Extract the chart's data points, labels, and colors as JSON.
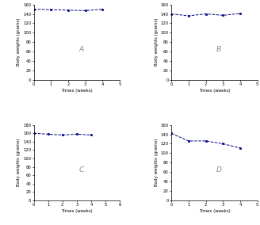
{
  "subplots": [
    {
      "label": "A",
      "x": [
        0,
        1,
        2,
        3,
        4
      ],
      "y": [
        150,
        149,
        148,
        147,
        150
      ],
      "ylim": [
        0,
        160
      ],
      "yticks": [
        0,
        20,
        40,
        60,
        80,
        100,
        120,
        140,
        160
      ],
      "xlim": [
        0,
        5
      ],
      "xticks": [
        0,
        1,
        2,
        3,
        4,
        5
      ],
      "ylabel": "Body weights (grams)",
      "xlabel": "Times (weeks)"
    },
    {
      "label": "B",
      "x": [
        0,
        1,
        2,
        3,
        4
      ],
      "y": [
        140,
        136,
        140,
        137,
        141
      ],
      "ylim": [
        0,
        160
      ],
      "yticks": [
        0,
        20,
        40,
        60,
        80,
        100,
        120,
        140,
        160
      ],
      "xlim": [
        0,
        5
      ],
      "xticks": [
        0,
        1,
        2,
        3,
        4,
        5
      ],
      "ylabel": "Body weights (grams)",
      "xlabel": "Times (weeks)"
    },
    {
      "label": "C",
      "x": [
        0,
        1,
        2,
        3,
        4
      ],
      "y": [
        160,
        158,
        156,
        158,
        156
      ],
      "ylim": [
        0,
        180
      ],
      "yticks": [
        0,
        20,
        40,
        60,
        80,
        100,
        120,
        140,
        160,
        180
      ],
      "xlim": [
        0,
        6
      ],
      "xticks": [
        0,
        1,
        2,
        3,
        4,
        5,
        6
      ],
      "ylabel": "Body weights (grams)",
      "xlabel": "Times (weeks)"
    },
    {
      "label": "D",
      "x": [
        0,
        1,
        2,
        3,
        4
      ],
      "y": [
        142,
        126,
        126,
        120,
        111
      ],
      "ylim": [
        0,
        160
      ],
      "yticks": [
        0,
        20,
        40,
        60,
        80,
        100,
        120,
        140,
        160
      ],
      "xlim": [
        0,
        5
      ],
      "xticks": [
        0,
        1,
        2,
        3,
        4,
        5
      ],
      "ylabel": "Body weights (grams)",
      "xlabel": "Times (weeks)"
    }
  ],
  "line_color": "#00008B",
  "marker": "s",
  "markersize": 2.0,
  "linewidth": 0.7,
  "label_fontsize": 4.0,
  "tick_fontsize": 3.8,
  "annotation_fontsize": 6.5,
  "annotation_color": "#888888"
}
